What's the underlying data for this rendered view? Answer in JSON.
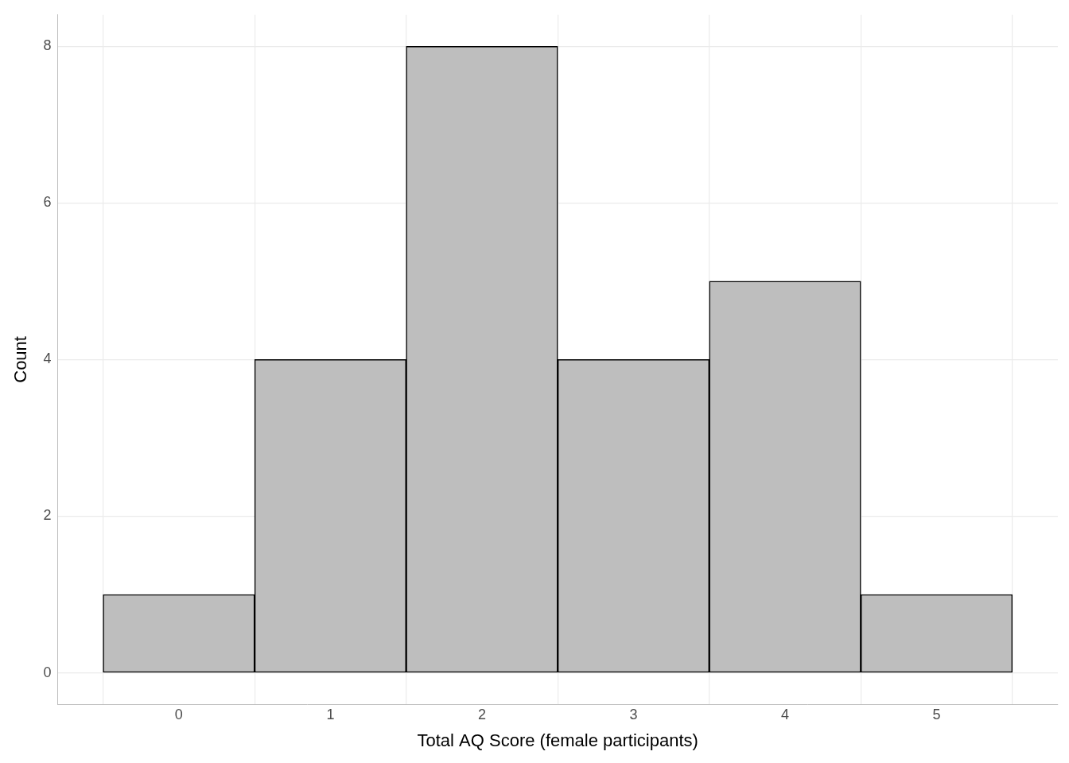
{
  "chart_data": {
    "type": "histogram",
    "x_label": "Total AQ Score (female participants)",
    "y_label": "Count",
    "bins": [
      -0.5,
      0.5,
      1.5,
      2.5,
      3.5,
      4.5,
      5.5
    ],
    "counts": [
      1,
      4,
      8,
      4,
      5,
      1
    ],
    "color": "#bebebe",
    "xlim": [
      -0.8,
      5.8
    ],
    "xticks": [
      0,
      1,
      2,
      3,
      4,
      5
    ],
    "ylim": [
      -0.4,
      8.4
    ],
    "yticks": [
      0,
      2,
      4,
      6,
      8
    ],
    "grid": true
  }
}
